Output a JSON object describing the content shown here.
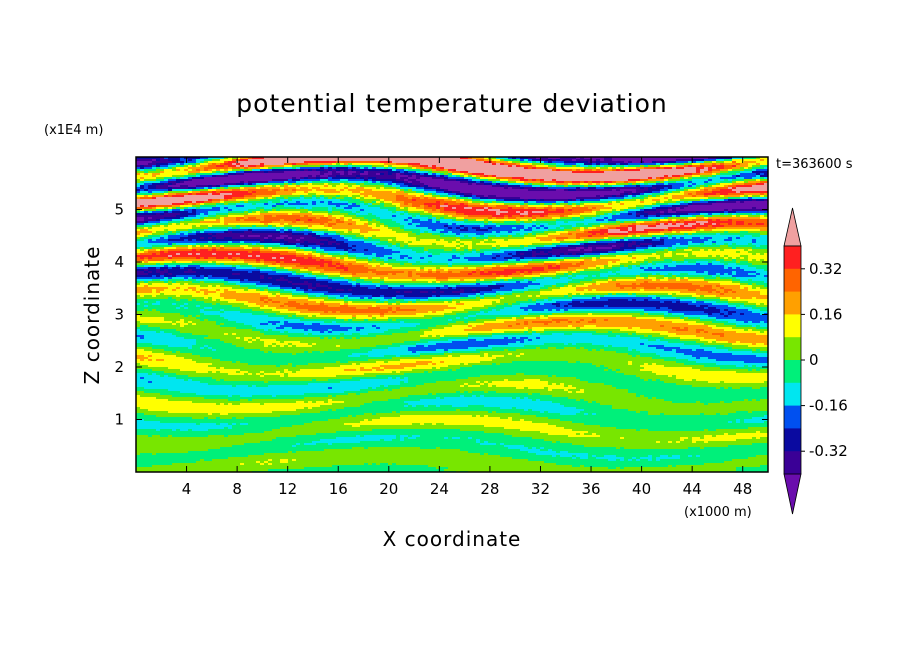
{
  "chart_data": {
    "type": "heatmap",
    "title": "potential temperature deviation",
    "xlabel": "X coordinate",
    "ylabel": "Z coordinate",
    "x_unit": "(x1000 m)",
    "y_unit": "(x1E4 m)",
    "time_label": "t=363600 s",
    "xlim": [
      0,
      50
    ],
    "ylim": [
      0,
      6
    ],
    "x_ticks": [
      4,
      8,
      12,
      16,
      20,
      24,
      28,
      32,
      36,
      40,
      44,
      48
    ],
    "y_ticks": [
      1,
      2,
      3,
      4,
      5
    ],
    "colorbar": {
      "levels": [
        -0.48,
        -0.4,
        -0.32,
        -0.24,
        -0.16,
        -0.08,
        0,
        0.08,
        0.16,
        0.24,
        0.32,
        0.4
      ],
      "labels": [
        "0.32",
        "0.16",
        "0",
        "-0.16",
        "-0.32"
      ],
      "label_values": [
        0.32,
        0.16,
        0,
        -0.16,
        -0.32
      ],
      "colors": [
        "#6a0dad",
        "#3a0096",
        "#0a0aa0",
        "#0050f0",
        "#00e6f0",
        "#00f07a",
        "#78e600",
        "#ffff00",
        "#ffa000",
        "#ff6400",
        "#ff2020",
        "#f0a0a0"
      ]
    }
  }
}
